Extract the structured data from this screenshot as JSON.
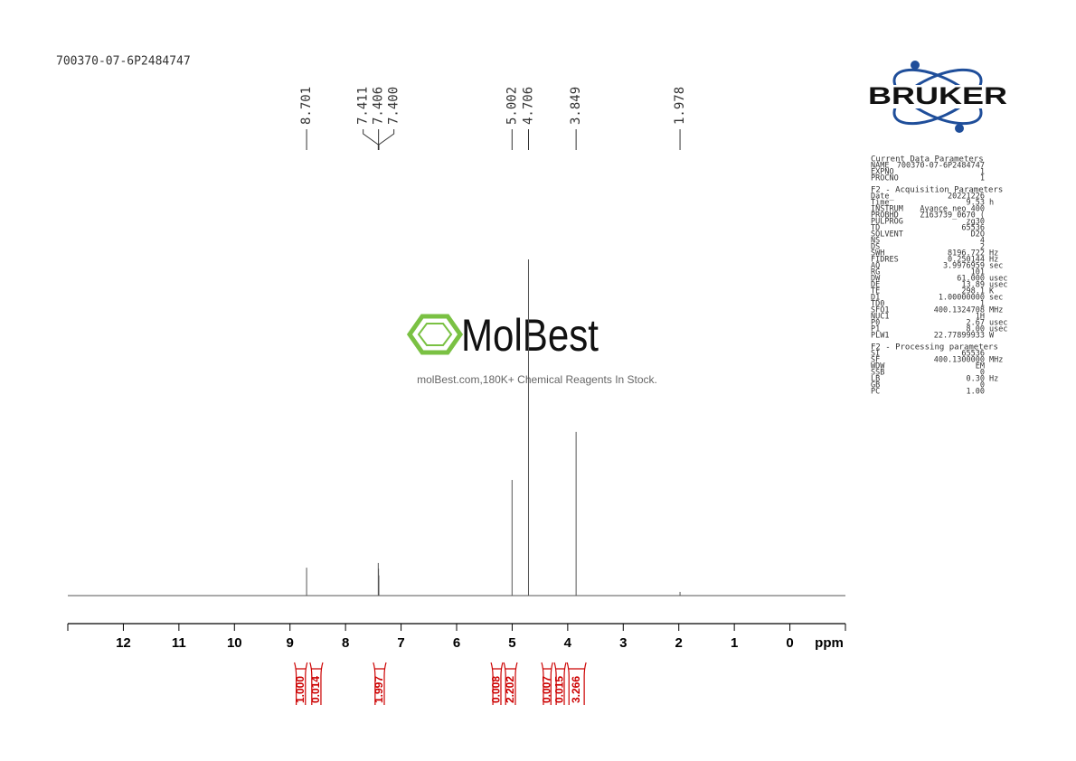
{
  "chart_data": {
    "type": "nmr",
    "title": "700370-07-6P2484747",
    "xlabel": "ppm",
    "xlim": [
      13,
      -1
    ],
    "xticks": [
      12,
      11,
      10,
      9,
      8,
      7,
      6,
      5,
      4,
      3,
      2,
      1,
      0
    ],
    "ylim": [
      0,
      100
    ],
    "color": "#555555",
    "integral_color": "#cc0000",
    "peaks": {
      "ppm": [
        8.701,
        7.411,
        7.406,
        7.4,
        5.002,
        4.706,
        3.849,
        1.978
      ],
      "ppm_labels": [
        "8.701",
        "7.411",
        "7.406",
        "7.400",
        "5.002",
        "4.706",
        "3.849",
        "1.978"
      ],
      "values": [
        8.3,
        9.7,
        8.0,
        6.0,
        34.4,
        100,
        48.7,
        1.1
      ]
    },
    "integrals": {
      "values": [
        1.0,
        0.014,
        1.997,
        0.008,
        2.202,
        0.007,
        0.015,
        3.266
      ],
      "value_labels": [
        "1.000",
        "0.014",
        "1.997",
        "0.008",
        "2.202",
        "0.007",
        "0.015",
        "3.266"
      ],
      "ranges": [
        [
          8.92,
          8.69
        ],
        [
          8.64,
          8.41
        ],
        [
          7.5,
          7.27
        ],
        [
          5.38,
          5.17
        ],
        [
          5.15,
          4.91
        ],
        [
          4.47,
          4.27
        ],
        [
          4.24,
          4.03
        ],
        [
          4.01,
          3.67
        ]
      ]
    }
  },
  "logo": {
    "brand": "BRUKER"
  },
  "watermark": {
    "name": "MolBest",
    "tagline": "molBest.com,180K+ Chemical Reagents In Stock."
  },
  "parameters": [
    {
      "heading": "Current Data Parameters",
      "rows": [
        [
          "NAME",
          "700370-07-6P2484747"
        ],
        [
          "EXPNO",
          "1"
        ],
        [
          "PROCNO",
          "1"
        ]
      ]
    },
    {
      "heading": "F2 - Acquisition Parameters",
      "rows": [
        [
          "Date_",
          "20221226"
        ],
        [
          "Time",
          "9.53",
          "h"
        ],
        [
          "INSTRUM",
          "Avance neo 400"
        ],
        [
          "PROBHD",
          "Z163739_0670 ("
        ],
        [
          "PULPROG",
          "zg30"
        ],
        [
          "TD",
          "65536"
        ],
        [
          "SOLVENT",
          "D2O"
        ],
        [
          "NS",
          "4"
        ],
        [
          "DS",
          "2"
        ],
        [
          "SWH",
          "8196.722",
          "Hz"
        ],
        [
          "FIDRES",
          "0.250144",
          "Hz"
        ],
        [
          "AQ",
          "3.9976959",
          "sec"
        ],
        [
          "RG",
          "101"
        ],
        [
          "DW",
          "61.000",
          "usec"
        ],
        [
          "DE",
          "13.89",
          "usec"
        ],
        [
          "TE",
          "298.1",
          "K"
        ],
        [
          "D1",
          "1.00000000",
          "sec"
        ],
        [
          "TD0",
          "1"
        ],
        [
          "SFO1",
          "400.1324708",
          "MHz"
        ],
        [
          "NUC1",
          "1H"
        ],
        [
          "P0",
          "2.67",
          "usec"
        ],
        [
          "P1",
          "8.00",
          "usec"
        ],
        [
          "PLW1",
          "22.77899933",
          "W"
        ]
      ]
    },
    {
      "heading": "F2 - Processing parameters",
      "rows": [
        [
          "SI",
          "65536"
        ],
        [
          "SF",
          "400.1300000",
          "MHz"
        ],
        [
          "WDW",
          "EM"
        ],
        [
          "SSB",
          "0"
        ],
        [
          "LB",
          "0.30",
          "Hz"
        ],
        [
          "GB",
          "0"
        ],
        [
          "PC",
          "1.00"
        ]
      ]
    }
  ]
}
